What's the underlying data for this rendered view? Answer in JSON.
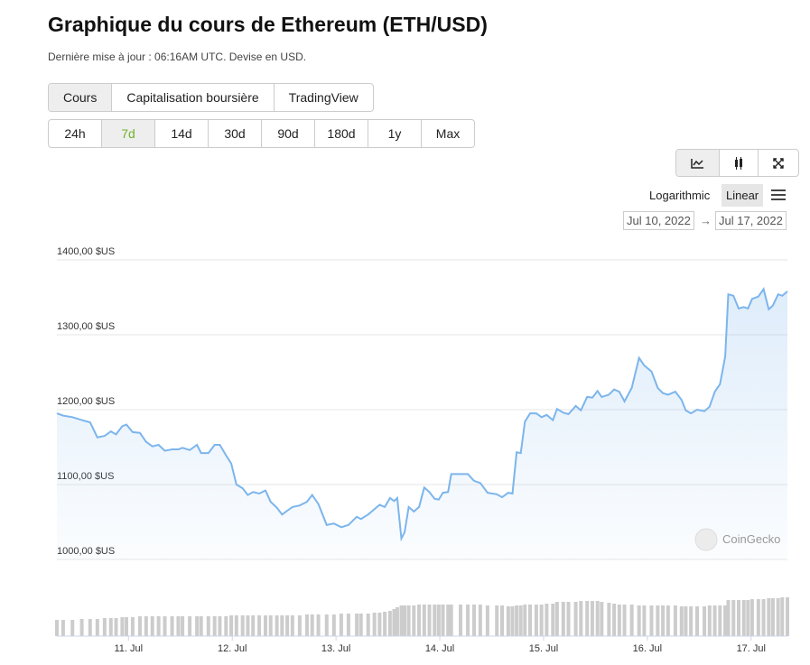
{
  "header": {
    "title": "Graphique du cours de Ethereum (ETH/USD)",
    "subtitle": "Dernière mise à jour : 06:16AM UTC. Devise en USD."
  },
  "tabs": {
    "items": [
      "Cours",
      "Capitalisation boursière",
      "TradingView"
    ],
    "active": 0
  },
  "ranges": {
    "items": [
      "24h",
      "7d",
      "14d",
      "30d",
      "90d",
      "180d",
      "1y",
      "Max"
    ],
    "active": 1
  },
  "toolbar": {
    "log_label": "Logarithmic",
    "linear_label": "Linear",
    "from": "Jul 10, 2022",
    "separator": "→",
    "to": "Jul 17, 2022"
  },
  "chart_data": {
    "type": "line",
    "color": "#7cb5ec",
    "grid": true,
    "log": false,
    "watermark": "CoinGecko",
    "xlim": [
      10.31,
      17.35
    ],
    "xticks": [
      {
        "value": 11,
        "label": "11. Jul"
      },
      {
        "value": 12,
        "label": "12. Jul"
      },
      {
        "value": 13,
        "label": "13. Jul"
      },
      {
        "value": 14,
        "label": "14. Jul"
      },
      {
        "value": 15,
        "label": "15. Jul"
      },
      {
        "value": 16,
        "label": "16. Jul"
      },
      {
        "value": 17,
        "label": "17. Jul"
      }
    ],
    "ylim": [
      1000,
      1400
    ],
    "yticks": [
      {
        "value": 1000,
        "label": "1000,00 $US"
      },
      {
        "value": 1100,
        "label": "1100,00 $US"
      },
      {
        "value": 1200,
        "label": "1200,00 $US"
      },
      {
        "value": 1300,
        "label": "1300,00 $US"
      },
      {
        "value": 1400,
        "label": "1400,00 $US"
      }
    ],
    "x": [
      10.31,
      10.37,
      10.46,
      10.55,
      10.63,
      10.7,
      10.77,
      10.83,
      10.88,
      10.94,
      10.98,
      11.04,
      11.11,
      11.17,
      11.23,
      11.29,
      11.35,
      11.42,
      11.48,
      11.52,
      11.59,
      11.66,
      11.7,
      11.77,
      11.83,
      11.88,
      11.94,
      11.99,
      12.04,
      12.1,
      12.15,
      12.2,
      12.26,
      12.32,
      12.37,
      12.43,
      12.48,
      12.53,
      12.58,
      12.65,
      12.72,
      12.77,
      12.83,
      12.91,
      12.98,
      13.05,
      13.12,
      13.2,
      13.24,
      13.31,
      13.37,
      13.42,
      13.47,
      13.52,
      13.56,
      13.59,
      13.63,
      13.66,
      13.7,
      13.75,
      13.8,
      13.85,
      13.9,
      13.95,
      13.99,
      14.03,
      14.08,
      14.11,
      14.2,
      14.27,
      14.33,
      14.39,
      14.46,
      14.55,
      14.6,
      14.66,
      14.7,
      14.74,
      14.78,
      14.82,
      14.87,
      14.93,
      14.98,
      15.03,
      15.09,
      15.13,
      15.19,
      15.24,
      15.31,
      15.36,
      15.42,
      15.47,
      15.52,
      15.56,
      15.63,
      15.68,
      15.73,
      15.78,
      15.85,
      15.92,
      15.97,
      16.04,
      16.1,
      16.15,
      16.2,
      16.27,
      16.33,
      16.37,
      16.42,
      16.48,
      16.55,
      16.6,
      16.65,
      16.7,
      16.75,
      16.78,
      16.83,
      16.88,
      16.93,
      16.97,
      17.01,
      17.07,
      17.12,
      17.17,
      17.21,
      17.26,
      17.3,
      17.35
    ],
    "values": [
      1195,
      1192,
      1190,
      1186,
      1183,
      1163,
      1165,
      1171,
      1167,
      1178,
      1180,
      1170,
      1169,
      1157,
      1151,
      1153,
      1145,
      1147,
      1147,
      1149,
      1146,
      1153,
      1142,
      1142,
      1153,
      1153,
      1139,
      1128,
      1100,
      1095,
      1086,
      1090,
      1088,
      1092,
      1077,
      1069,
      1060,
      1065,
      1070,
      1072,
      1077,
      1086,
      1074,
      1046,
      1048,
      1043,
      1046,
      1057,
      1054,
      1060,
      1067,
      1073,
      1070,
      1082,
      1078,
      1082,
      1028,
      1036,
      1070,
      1064,
      1070,
      1096,
      1090,
      1081,
      1080,
      1089,
      1090,
      1114,
      1114,
      1114,
      1105,
      1102,
      1089,
      1087,
      1083,
      1089,
      1088,
      1143,
      1142,
      1184,
      1195,
      1195,
      1190,
      1193,
      1186,
      1201,
      1196,
      1194,
      1205,
      1199,
      1217,
      1216,
      1225,
      1217,
      1220,
      1227,
      1224,
      1211,
      1229,
      1269,
      1259,
      1251,
      1229,
      1222,
      1220,
      1224,
      1213,
      1199,
      1195,
      1200,
      1198,
      1204,
      1224,
      1234,
      1271,
      1354,
      1352,
      1335,
      1337,
      1335,
      1348,
      1351,
      1361,
      1334,
      1339,
      1354,
      1352,
      1358
    ],
    "volume": [
      18,
      18,
      18,
      19,
      19,
      19,
      20,
      20,
      20,
      21,
      21,
      21,
      22,
      22,
      22,
      22,
      22,
      22,
      22,
      22,
      22,
      22,
      22,
      22,
      22,
      22,
      22,
      23,
      23,
      23,
      23,
      23,
      23,
      23,
      23,
      23,
      23,
      23,
      23,
      23,
      24,
      24,
      24,
      24,
      24,
      25,
      25,
      25,
      25,
      25,
      26,
      26,
      27,
      28,
      30,
      32,
      34,
      34,
      34,
      34,
      35,
      35,
      35,
      35,
      35,
      35,
      35,
      35,
      35,
      35,
      35,
      35,
      34,
      34,
      34,
      33,
      33,
      34,
      34,
      35,
      35,
      35,
      35,
      36,
      36,
      38,
      38,
      38,
      38,
      39,
      39,
      39,
      39,
      38,
      37,
      36,
      35,
      35,
      35,
      34,
      34,
      34,
      34,
      34,
      34,
      34,
      33,
      33,
      33,
      33,
      33,
      34,
      34,
      34,
      34,
      40,
      40,
      40,
      40,
      40,
      41,
      41,
      41,
      42,
      42,
      42,
      43,
      43
    ]
  }
}
